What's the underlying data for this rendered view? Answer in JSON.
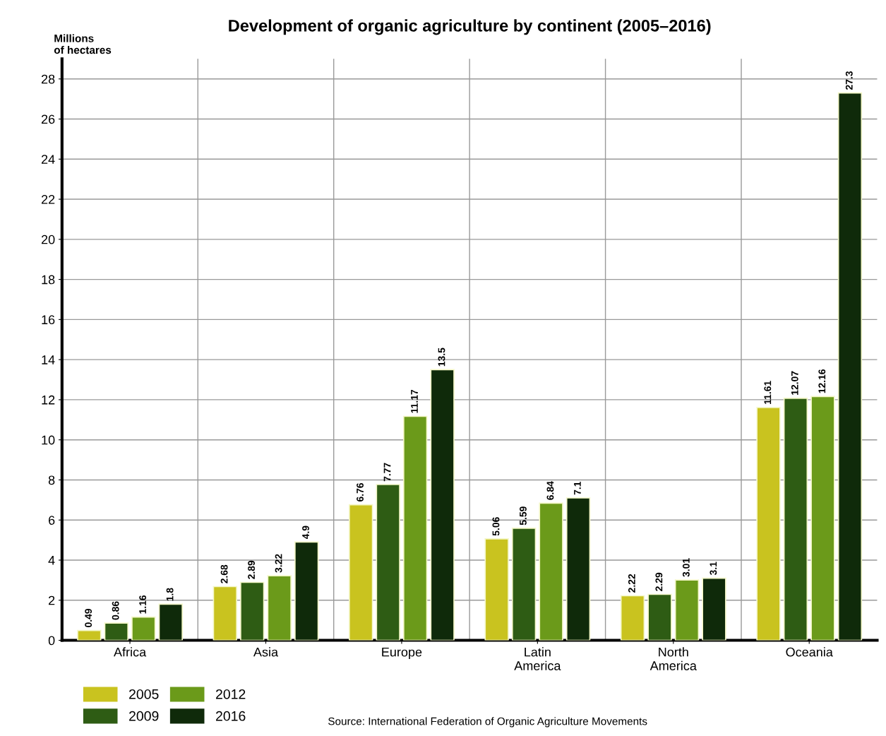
{
  "chart_data": {
    "type": "bar",
    "title": "Development of organic agriculture by continent (2005–2016)",
    "ylabel": "Millions\nof hectares",
    "categories": [
      "Africa",
      "Asia",
      "Europe",
      "Latin\nAmerica",
      "North\nAmerica",
      "Oceania"
    ],
    "series": [
      {
        "name": "2005",
        "color": "#c9c31f",
        "values": [
          0.49,
          2.68,
          6.76,
          5.06,
          2.22,
          11.61
        ]
      },
      {
        "name": "2009",
        "color": "#2e5c14",
        "values": [
          0.86,
          2.89,
          7.77,
          5.59,
          2.29,
          12.07
        ]
      },
      {
        "name": "2012",
        "color": "#6b9a1a",
        "values": [
          1.16,
          3.22,
          11.17,
          6.84,
          3.01,
          12.16
        ]
      },
      {
        "name": "2016",
        "color": "#0f2a0a",
        "values": [
          1.8,
          4.9,
          13.5,
          7.1,
          3.1,
          27.3
        ]
      }
    ],
    "ylim": [
      0,
      29
    ],
    "yticks": [
      0,
      2,
      4,
      6,
      8,
      10,
      12,
      14,
      16,
      18,
      20,
      22,
      24,
      26,
      28
    ],
    "grid": true,
    "legend": "bottom left",
    "data_labels": true,
    "annotations": [
      "Source: International Federation of Organic Agriculture Movements"
    ]
  }
}
